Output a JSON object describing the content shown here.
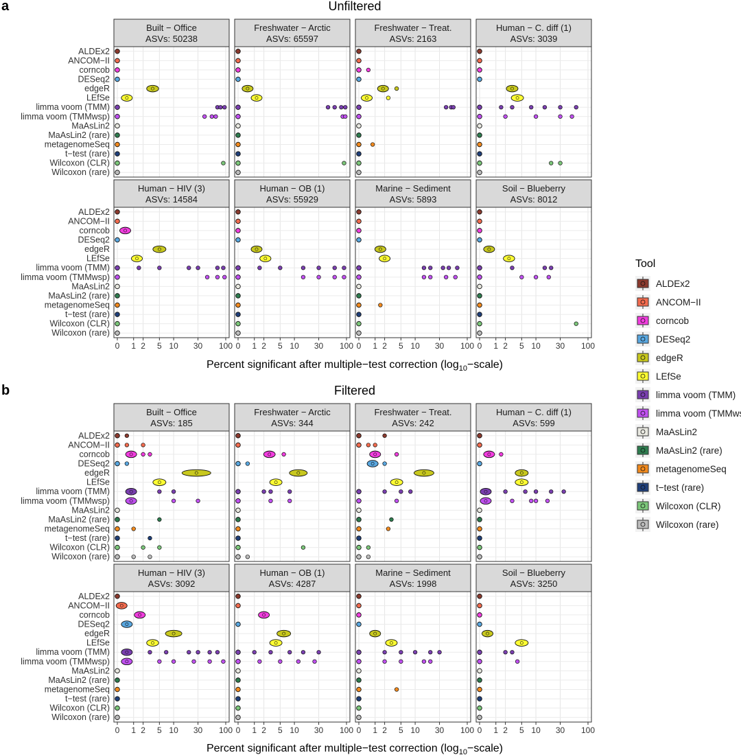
{
  "figure": {
    "panels": [
      {
        "letter": "a",
        "title": "Unfiltered"
      },
      {
        "letter": "b",
        "title": "Filtered"
      }
    ],
    "xlabel_main": "Percent significant after multiple−test correction (log",
    "xlabel_sub": "10",
    "xlabel_tail": "−scale)"
  },
  "legend": {
    "title": "Tool",
    "items": [
      {
        "label": "ALDEx2",
        "color": "#8B3A2E"
      },
      {
        "label": "ANCOM−II",
        "color": "#F26B4E"
      },
      {
        "label": "corncob",
        "color": "#F23DDF"
      },
      {
        "label": "DESeq2",
        "color": "#59A7E0"
      },
      {
        "label": "edgeR",
        "color": "#C8C81E"
      },
      {
        "label": "LEfSe",
        "color": "#FFFF33"
      },
      {
        "label": "limma voom (TMM)",
        "color": "#7A3FB0"
      },
      {
        "label": "limma voom (TMMwsp)",
        "color": "#C050F0"
      },
      {
        "label": "MaAsLin2",
        "color": "#E8E8E0"
      },
      {
        "label": "MaAsLin2 (rare)",
        "color": "#2E7D4F"
      },
      {
        "label": "metagenomeSeq",
        "color": "#F28A1E"
      },
      {
        "label": "t−test (rare)",
        "color": "#1F3F7A"
      },
      {
        "label": "Wilcoxon (CLR)",
        "color": "#7CC77A"
      },
      {
        "label": "Wilcoxon (rare)",
        "color": "#BDBDBD"
      }
    ]
  },
  "chart_data": {
    "type": "scatter",
    "y_categories": [
      "ALDEx2",
      "ANCOM−II",
      "corncob",
      "DESeq2",
      "edgeR",
      "LEfSe",
      "limma voom (TMM)",
      "limma voom (TMMwsp)",
      "MaAsLin2",
      "MaAsLin2 (rare)",
      "metagenomeSeq",
      "t−test (rare)",
      "Wilcoxon (CLR)",
      "Wilcoxon (rare)"
    ],
    "x_scale": "log10(x+1)",
    "xlim": [
      0,
      100
    ],
    "x_ticks": [
      0,
      1,
      2,
      5,
      10,
      30,
      100
    ],
    "grid": true,
    "legend_position": "right",
    "panels": [
      {
        "group": "Unfiltered",
        "facets": [
          {
            "title": "Built − Office",
            "subtitle": "ASVs: 50238",
            "medians": [
              0,
              0,
              0,
              0,
              3.5,
              0.5,
              0,
              0,
              0,
              0,
              0,
              0,
              0,
              0
            ],
            "outliers": [
              [
                6,
                70
              ],
              [
                6,
                80
              ],
              [
                6,
                95
              ],
              [
                7,
                40
              ],
              [
                7,
                55
              ],
              [
                7,
                65
              ],
              [
                12,
                90
              ]
            ]
          },
          {
            "title": "Freshwater − Arctic",
            "subtitle": "ASVs: 65597",
            "medians": [
              0,
              0,
              0,
              0,
              0.5,
              1.2,
              0,
              0,
              0,
              0,
              0,
              0,
              0,
              0
            ],
            "outliers": [
              [
                6,
                45
              ],
              [
                6,
                60
              ],
              [
                6,
                80
              ],
              [
                6,
                95
              ],
              [
                7,
                85
              ],
              [
                7,
                95
              ],
              [
                12,
                90
              ]
            ]
          },
          {
            "title": "Freshwater − Treat.",
            "subtitle": "ASVs: 2163",
            "medians": [
              0,
              0,
              0,
              0,
              1.8,
              0.4,
              0,
              0,
              0,
              0,
              0,
              0,
              0,
              0
            ],
            "outliers": [
              [
                2,
                0.5
              ],
              [
                4,
                4
              ],
              [
                5,
                2.5
              ],
              [
                6,
                40
              ],
              [
                6,
                50
              ],
              [
                6,
                55
              ],
              [
                10,
                0.8
              ]
            ]
          },
          {
            "title": "Human − C. diff (1)",
            "subtitle": "ASVs: 3039",
            "medians": [
              0,
              0,
              0,
              0,
              3,
              4,
              0,
              0,
              0,
              0,
              0,
              0,
              0,
              0
            ],
            "outliers": [
              [
                6,
                1.5
              ],
              [
                6,
                3
              ],
              [
                6,
                8
              ],
              [
                6,
                15
              ],
              [
                6,
                30
              ],
              [
                6,
                60
              ],
              [
                7,
                2
              ],
              [
                7,
                10
              ],
              [
                7,
                30
              ],
              [
                7,
                50
              ],
              [
                12,
                20
              ],
              [
                12,
                30
              ]
            ]
          }
        ]
      },
      {
        "group": "Unfiltered",
        "facets": [
          {
            "title": "Human − HIV (3)",
            "subtitle": "ASVs: 14584",
            "medians": [
              0,
              0,
              0.4,
              0,
              5,
              1.3,
              0,
              0,
              0,
              0,
              0,
              0,
              0,
              0
            ],
            "outliers": [
              [
                6,
                1.5
              ],
              [
                6,
                5
              ],
              [
                6,
                20
              ],
              [
                6,
                30
              ],
              [
                6,
                70
              ],
              [
                6,
                90
              ],
              [
                7,
                45
              ],
              [
                7,
                70
              ],
              [
                7,
                95
              ]
            ]
          },
          {
            "title": "Human − OB (1)",
            "subtitle": "ASVs: 55929",
            "medians": [
              0,
              0,
              0,
              0,
              1.2,
              2.2,
              0,
              0,
              0,
              0,
              0,
              0,
              0,
              0
            ],
            "outliers": [
              [
                6,
                1.5
              ],
              [
                6,
                5
              ],
              [
                6,
                15
              ],
              [
                6,
                30
              ],
              [
                6,
                60
              ],
              [
                6,
                90
              ],
              [
                7,
                15
              ],
              [
                7,
                30
              ],
              [
                7,
                60
              ],
              [
                7,
                90
              ]
            ]
          },
          {
            "title": "Marine − Sediment",
            "subtitle": "ASVs: 5893",
            "medians": [
              0,
              0,
              0,
              0,
              1.5,
              2,
              0,
              0,
              0,
              0,
              0,
              0,
              0,
              0
            ],
            "outliers": [
              [
                6,
                15
              ],
              [
                6,
                20
              ],
              [
                6,
                35
              ],
              [
                6,
                45
              ],
              [
                6,
                65
              ],
              [
                7,
                15
              ],
              [
                7,
                20
              ],
              [
                7,
                40
              ],
              [
                7,
                60
              ],
              [
                10,
                1.5
              ]
            ]
          },
          {
            "title": "Soil − Blueberry",
            "subtitle": "ASVs: 8012",
            "medians": [
              0,
              0,
              0,
              0,
              0.5,
              2.5,
              0,
              0,
              0,
              0,
              0,
              0,
              0,
              0
            ],
            "outliers": [
              [
                6,
                3
              ],
              [
                6,
                15
              ],
              [
                6,
                20
              ],
              [
                7,
                5
              ],
              [
                7,
                10
              ],
              [
                7,
                18
              ],
              [
                12,
                60
              ]
            ]
          }
        ]
      },
      {
        "group": "Filtered",
        "facets": [
          {
            "title": "Built − Office",
            "subtitle": "ASVs: 185",
            "medians": [
              0,
              0,
              0.8,
              0,
              28,
              5,
              0.8,
              0.8,
              0,
              0,
              0,
              0,
              0,
              0
            ],
            "outliers": [
              [
                0,
                0.5
              ],
              [
                1,
                0.5
              ],
              [
                1,
                2
              ],
              [
                2,
                2
              ],
              [
                2,
                3
              ],
              [
                3,
                0.5
              ],
              [
                6,
                5
              ],
              [
                6,
                10
              ],
              [
                7,
                10
              ],
              [
                7,
                30
              ],
              [
                9,
                5
              ],
              [
                10,
                1
              ],
              [
                11,
                3
              ],
              [
                12,
                2
              ],
              [
                12,
                5
              ],
              [
                13,
                1
              ],
              [
                13,
                3
              ]
            ]
          },
          {
            "title": "Freshwater − Arctic",
            "subtitle": "ASVs: 344",
            "medians": [
              0,
              0,
              2.8,
              0,
              12,
              4,
              0,
              0,
              0,
              0,
              0,
              0,
              0,
              0
            ],
            "outliers": [
              [
                2,
                6
              ],
              [
                3,
                0.5
              ],
              [
                6,
                2
              ],
              [
                6,
                3
              ],
              [
                6,
                8
              ],
              [
                7,
                3
              ],
              [
                7,
                8
              ],
              [
                12,
                15
              ],
              [
                13,
                0.5
              ]
            ]
          },
          {
            "title": "Freshwater − Treat.",
            "subtitle": "ASVs: 242",
            "medians": [
              0,
              0,
              1,
              0.8,
              15,
              4,
              0,
              0,
              0,
              0,
              0,
              0,
              0,
              0
            ],
            "outliers": [
              [
                0,
                2
              ],
              [
                1,
                0.5
              ],
              [
                1,
                1
              ],
              [
                2,
                4
              ],
              [
                3,
                2
              ],
              [
                6,
                2
              ],
              [
                6,
                5
              ],
              [
                6,
                8
              ],
              [
                7,
                4
              ],
              [
                9,
                3
              ],
              [
                10,
                2.5
              ],
              [
                12,
                0.5
              ],
              [
                13,
                0.5
              ]
            ]
          },
          {
            "title": "Human − C. diff (1)",
            "subtitle": "ASVs: 599",
            "medians": [
              0,
              0,
              0.5,
              0,
              5,
              5,
              0.3,
              0.3,
              0,
              0,
              0,
              0,
              0,
              0
            ],
            "outliers": [
              [
                2,
                1.5
              ],
              [
                6,
                2
              ],
              [
                6,
                6
              ],
              [
                6,
                10
              ],
              [
                6,
                20
              ],
              [
                6,
                35
              ],
              [
                7,
                3
              ],
              [
                7,
                8
              ],
              [
                7,
                10
              ],
              [
                7,
                17
              ]
            ]
          }
        ]
      },
      {
        "group": "Filtered",
        "facets": [
          {
            "title": "Human − HIV (3)",
            "subtitle": "ASVs: 3092",
            "medians": [
              0,
              0.2,
              1.6,
              0.5,
              10,
              3.5,
              0.5,
              0.5,
              0,
              0,
              0,
              0,
              0,
              0
            ],
            "outliers": [
              [
                6,
                3
              ],
              [
                6,
                7
              ],
              [
                6,
                20
              ],
              [
                6,
                30
              ],
              [
                6,
                50
              ],
              [
                6,
                70
              ],
              [
                7,
                5
              ],
              [
                7,
                10
              ],
              [
                7,
                25
              ],
              [
                7,
                50
              ],
              [
                7,
                90
              ]
            ]
          },
          {
            "title": "Human − OB (1)",
            "subtitle": "ASVs: 4287",
            "medians": [
              0,
              0,
              2,
              0,
              6,
              4,
              0,
              0,
              0,
              0,
              0,
              0,
              0,
              0
            ],
            "outliers": [
              [
                6,
                1
              ],
              [
                6,
                3
              ],
              [
                6,
                8
              ],
              [
                6,
                15
              ],
              [
                6,
                30
              ],
              [
                7,
                1.5
              ],
              [
                7,
                5
              ],
              [
                7,
                12
              ],
              [
                7,
                25
              ]
            ]
          },
          {
            "title": "Marine − Sediment",
            "subtitle": "ASVs: 1998",
            "medians": [
              0,
              0,
              0,
              0,
              1,
              3,
              0,
              0,
              0,
              0,
              0,
              0,
              0,
              0
            ],
            "outliers": [
              [
                6,
                2
              ],
              [
                6,
                5
              ],
              [
                6,
                10
              ],
              [
                6,
                20
              ],
              [
                6,
                30
              ],
              [
                7,
                2
              ],
              [
                7,
                5
              ],
              [
                7,
                15
              ],
              [
                7,
                20
              ],
              [
                10,
                4
              ]
            ]
          },
          {
            "title": "Soil − Blueberry",
            "subtitle": "ASVs: 3250",
            "medians": [
              0,
              0,
              0,
              0,
              0.4,
              5,
              0,
              0,
              0,
              0,
              0,
              0,
              0,
              0
            ],
            "outliers": [
              [
                6,
                2
              ],
              [
                6,
                3
              ],
              [
                7,
                4
              ]
            ]
          }
        ]
      }
    ]
  }
}
